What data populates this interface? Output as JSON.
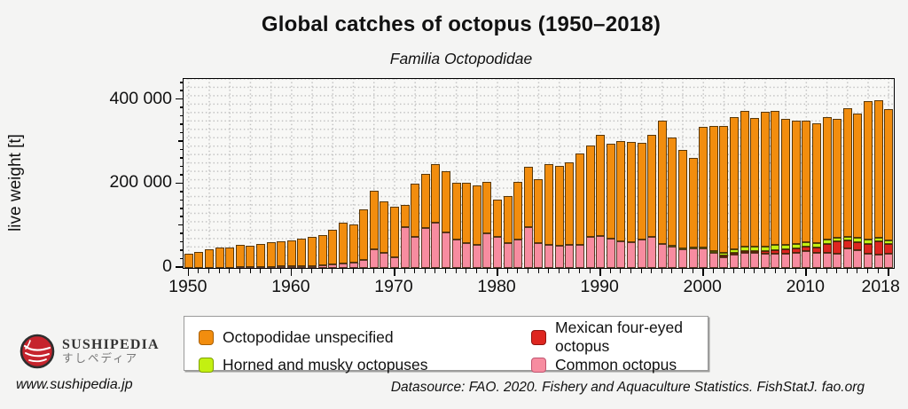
{
  "page": {
    "title": "Global catches of octopus (1950–2018)",
    "subtitle": "Familia Octopodidae"
  },
  "chart": {
    "ylabel": "live weight [t]",
    "y_major_ticks": [
      {
        "value": 0,
        "label": "0"
      },
      {
        "value": 200000,
        "label": "200 000"
      },
      {
        "value": 400000,
        "label": "400 000"
      }
    ],
    "y_minor_step": 20000,
    "x_labeled_ticks": [
      1950,
      1960,
      1970,
      1980,
      1990,
      2000,
      2010,
      2018
    ]
  },
  "chart_data": {
    "type": "bar",
    "stacked": true,
    "title": "Global catches of octopus (1950–2018)",
    "subtitle": "Familia Octopodidae",
    "xlabel": "",
    "ylabel": "live weight [t]",
    "ylim": [
      0,
      450000
    ],
    "grid": "dotted",
    "legend_position": "bottom",
    "x": [
      1950,
      1951,
      1952,
      1953,
      1954,
      1955,
      1956,
      1957,
      1958,
      1959,
      1960,
      1961,
      1962,
      1963,
      1964,
      1965,
      1966,
      1967,
      1968,
      1969,
      1970,
      1971,
      1972,
      1973,
      1974,
      1975,
      1976,
      1977,
      1978,
      1979,
      1980,
      1981,
      1982,
      1983,
      1984,
      1985,
      1986,
      1987,
      1988,
      1989,
      1990,
      1991,
      1992,
      1993,
      1994,
      1995,
      1996,
      1997,
      1998,
      1999,
      2000,
      2001,
      2002,
      2003,
      2004,
      2005,
      2006,
      2007,
      2008,
      2009,
      2010,
      2011,
      2012,
      2013,
      2014,
      2015,
      2016,
      2017,
      2018
    ],
    "series": [
      {
        "name": "Common octopus",
        "color": "#F78CA0",
        "values": [
          0,
          0,
          500,
          1000,
          1000,
          1500,
          2000,
          2500,
          3000,
          3500,
          4000,
          4000,
          5000,
          6000,
          8000,
          10000,
          12000,
          20000,
          44000,
          35000,
          25000,
          98000,
          75000,
          95000,
          107000,
          84000,
          67000,
          60000,
          55000,
          82000,
          75000,
          60000,
          68000,
          98000,
          60000,
          54000,
          53000,
          54000,
          56000,
          73000,
          77000,
          70000,
          64000,
          62000,
          68000,
          73000,
          58000,
          51000,
          44000,
          47000,
          47000,
          37000,
          26000,
          31000,
          36000,
          35000,
          34000,
          34000,
          34000,
          35000,
          40000,
          37000,
          36000,
          33000,
          47000,
          42000,
          33000,
          31000,
          33000
        ]
      },
      {
        "name": "Mexican four-eyed octopus",
        "color": "#DE2620",
        "values": [
          0,
          0,
          0,
          0,
          0,
          0,
          0,
          0,
          0,
          0,
          0,
          0,
          0,
          0,
          0,
          0,
          0,
          0,
          0,
          0,
          0,
          0,
          0,
          0,
          0,
          0,
          0,
          0,
          0,
          0,
          0,
          0,
          0,
          0,
          0,
          0,
          0,
          0,
          0,
          0,
          0,
          0,
          0,
          0,
          0,
          0,
          0,
          0,
          0,
          0,
          0,
          0,
          3000,
          5000,
          5000,
          5000,
          6000,
          9000,
          10000,
          11000,
          10000,
          12000,
          21000,
          30000,
          18000,
          20000,
          25000,
          32000,
          25000
        ]
      },
      {
        "name": "Horned and musky octopuses",
        "color": "#C3F011",
        "values": [
          0,
          0,
          0,
          0,
          0,
          0,
          0,
          0,
          0,
          0,
          0,
          0,
          0,
          0,
          0,
          0,
          0,
          0,
          0,
          0,
          0,
          0,
          0,
          0,
          0,
          0,
          0,
          0,
          0,
          0,
          0,
          0,
          0,
          0,
          0,
          0,
          0,
          0,
          0,
          0,
          0,
          0,
          0,
          0,
          0,
          0,
          0,
          1000,
          2000,
          2000,
          2000,
          4000,
          8000,
          8000,
          10000,
          10000,
          11000,
          11000,
          11000,
          11000,
          11000,
          10000,
          11000,
          9000,
          10000,
          10000,
          9000,
          9000,
          7000
        ]
      },
      {
        "name": "Octopodidae unspecified",
        "color": "#F28D0E",
        "values": [
          33000,
          38000,
          43500,
          47000,
          48000,
          52500,
          50000,
          55500,
          58000,
          60500,
          62000,
          65000,
          70000,
          72000,
          82000,
          98000,
          91000,
          119000,
          140000,
          123000,
          120000,
          52000,
          125000,
          130000,
          140000,
          146000,
          136000,
          142000,
          141000,
          124000,
          88000,
          112000,
          138000,
          143000,
          152000,
          193000,
          189000,
          198000,
          216000,
          218000,
          241000,
          225000,
          238000,
          238000,
          230000,
          243000,
          293000,
          259000,
          235000,
          214000,
          288000,
          298000,
          302000,
          316000,
          323000,
          307000,
          321000,
          321000,
          300000,
          293000,
          289000,
          286000,
          292000,
          283000,
          305000,
          296000,
          331000,
          328000,
          313000
        ]
      }
    ]
  },
  "legend": {
    "items": [
      {
        "label": "Octopodidae unspecified",
        "color": "#F28D0E",
        "border": "#a85f05"
      },
      {
        "label": "Mexican four-eyed octopus",
        "color": "#DE2620",
        "border": "#8f1410"
      },
      {
        "label": "Horned and musky octopuses",
        "color": "#C3F011",
        "border": "#7fa004"
      },
      {
        "label": "Common octopus",
        "color": "#F78CA0",
        "border": "#c05570"
      }
    ]
  },
  "logo": {
    "name": "SUSHIPEDIA",
    "name_jp": "すしペディア"
  },
  "footer": {
    "site": "www.sushipedia.jp",
    "datasource": "Datasource: FAO. 2020. Fishery and Aquaculture Statistics. FishStatJ. fao.org"
  }
}
